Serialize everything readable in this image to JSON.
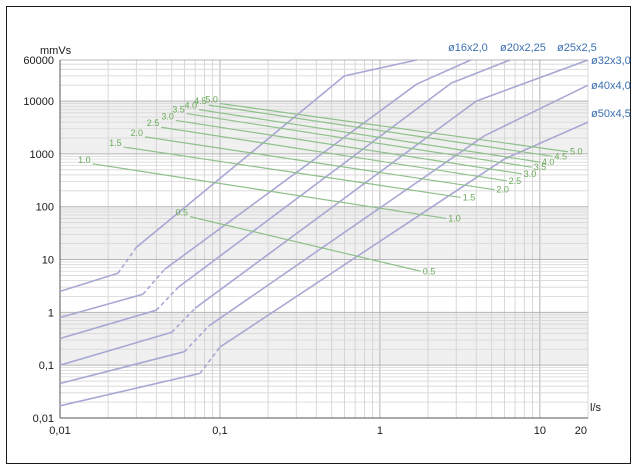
{
  "chart_data": {
    "type": "line",
    "title": "",
    "xlabel": "l/s",
    "ylabel": "mmVs",
    "x_scale": "log",
    "y_scale": "log",
    "xlim": [
      0.01,
      20
    ],
    "ylim": [
      0.01,
      60000
    ],
    "grid": true,
    "x_ticks": [
      {
        "value": 0.01,
        "label": "0,01"
      },
      {
        "value": 0.1,
        "label": "0,1"
      },
      {
        "value": 1,
        "label": "1"
      },
      {
        "value": 10,
        "label": "10"
      },
      {
        "value": 20,
        "label": "20"
      }
    ],
    "y_ticks": [
      {
        "value": 60000,
        "label": "60000"
      },
      {
        "value": 10000,
        "label": "10000"
      },
      {
        "value": 1000,
        "label": "1000"
      },
      {
        "value": 100,
        "label": "100"
      },
      {
        "value": 10,
        "label": "10"
      },
      {
        "value": 1,
        "label": "1"
      },
      {
        "value": 0.1,
        "label": "0,1"
      },
      {
        "value": 0.01,
        "label": "0,01"
      }
    ],
    "pipe_series": [
      {
        "name": "ø16x2,0",
        "color": "#a8a8d4",
        "points": [
          [
            0.01,
            2.5
          ],
          [
            0.023,
            5.5
          ],
          [
            0.03,
            17
          ],
          [
            0.6,
            30000
          ],
          [
            1.7,
            60000
          ]
        ]
      },
      {
        "name": "ø20x2,25",
        "color": "#a8a8d4",
        "points": [
          [
            0.01,
            0.8
          ],
          [
            0.033,
            2.2
          ],
          [
            0.045,
            6.5
          ],
          [
            1.7,
            21000
          ],
          [
            3.7,
            60000
          ]
        ]
      },
      {
        "name": "ø25x2,5",
        "color": "#a8a8d4",
        "points": [
          [
            0.01,
            0.32
          ],
          [
            0.04,
            1.1
          ],
          [
            0.055,
            3
          ],
          [
            2.8,
            22000
          ],
          [
            6.5,
            60000
          ]
        ]
      },
      {
        "name": "ø32x3,0",
        "color": "#a8a8d4",
        "points": [
          [
            0.01,
            0.1
          ],
          [
            0.05,
            0.42
          ],
          [
            0.07,
            1.2
          ],
          [
            4,
            10000
          ],
          [
            20,
            60000
          ]
        ]
      },
      {
        "name": "ø40x4,0",
        "color": "#a8a8d4",
        "points": [
          [
            0.01,
            0.045
          ],
          [
            0.06,
            0.18
          ],
          [
            0.085,
            0.55
          ],
          [
            4.5,
            2200
          ],
          [
            20,
            20000
          ]
        ]
      },
      {
        "name": "ø50x4,5",
        "color": "#a8a8d4",
        "points": [
          [
            0.01,
            0.017
          ],
          [
            0.075,
            0.07
          ],
          [
            0.1,
            0.22
          ],
          [
            6,
            800
          ],
          [
            20,
            4000
          ]
        ]
      }
    ],
    "velocity_series": [
      {
        "name": "0.5",
        "color": "#8fc08a",
        "points": [
          [
            0.065,
            65
          ],
          [
            1.8,
            6
          ]
        ]
      },
      {
        "name": "1.0",
        "color": "#8fc08a",
        "points": [
          [
            0.016,
            650
          ],
          [
            2.6,
            60
          ]
        ]
      },
      {
        "name": "1.5",
        "color": "#8fc08a",
        "points": [
          [
            0.025,
            1350
          ],
          [
            3.2,
            150
          ]
        ]
      },
      {
        "name": "2.0",
        "color": "#8fc08a",
        "points": [
          [
            0.034,
            2100
          ],
          [
            5.2,
            210
          ]
        ]
      },
      {
        "name": "2.5",
        "color": "#8fc08a",
        "points": [
          [
            0.043,
            3200
          ],
          [
            6.2,
            310
          ]
        ]
      },
      {
        "name": "3.0",
        "color": "#8fc08a",
        "points": [
          [
            0.053,
            4300
          ],
          [
            7.7,
            420
          ]
        ]
      },
      {
        "name": "3.5",
        "color": "#8fc08a",
        "points": [
          [
            0.062,
            5800
          ],
          [
            8.9,
            560
          ]
        ]
      },
      {
        "name": "4.0",
        "color": "#8fc08a",
        "points": [
          [
            0.074,
            6900
          ],
          [
            10,
            700
          ]
        ]
      },
      {
        "name": "4.5",
        "color": "#8fc08a",
        "points": [
          [
            0.085,
            8400
          ],
          [
            12,
            900
          ]
        ]
      },
      {
        "name": "5.0",
        "color": "#8fc08a",
        "points": [
          [
            0.1,
            9000
          ],
          [
            15,
            1100
          ]
        ]
      }
    ]
  }
}
